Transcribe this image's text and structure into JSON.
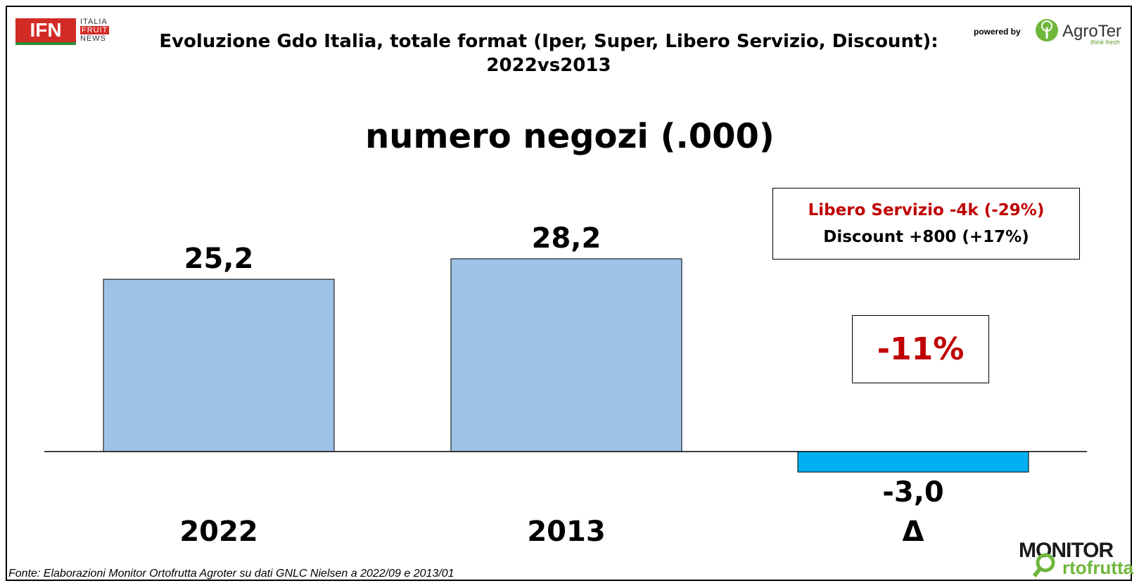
{
  "header": {
    "title_line1": "Evoluzione Gdo Italia, totale format (Iper, Super, Libero Servizio, Discount):",
    "title_line2": "2022vs2013",
    "subtitle": "numero negozi (.000)"
  },
  "logos": {
    "ifn_letters": "IFN",
    "ifn_sub1": "ITALIA",
    "ifn_sub2": "FRUIT",
    "ifn_sub3": "NEWS",
    "powered_by": "powered by",
    "agroter_name": "AgroTer",
    "agroter_tagline": "think fresh",
    "monitor_top": "MONITOR",
    "monitor_bottom": "rtofrutta"
  },
  "annotations": {
    "note_line1": "Libero Servizio -4k (-29%)",
    "note_line2": "Discount +800 (+17%)",
    "percent_change": "-11%"
  },
  "source": "Fonte: Elaborazioni Monitor Ortofrutta Agroter su dati GNLC Nielsen a 2022/09 e 2013/01",
  "colors": {
    "bar_main": "#9dc3e6",
    "bar_delta": "#00b0f0",
    "red_text": "#c00000"
  },
  "chart_data": {
    "type": "bar",
    "categories": [
      "2022",
      "2013",
      "Δ"
    ],
    "values": [
      25.2,
      28.2,
      -3.0
    ],
    "value_labels": [
      "25,2",
      "28,2",
      "-3,0"
    ],
    "ylim": [
      -5,
      40
    ],
    "grid": false,
    "legend": "none"
  }
}
